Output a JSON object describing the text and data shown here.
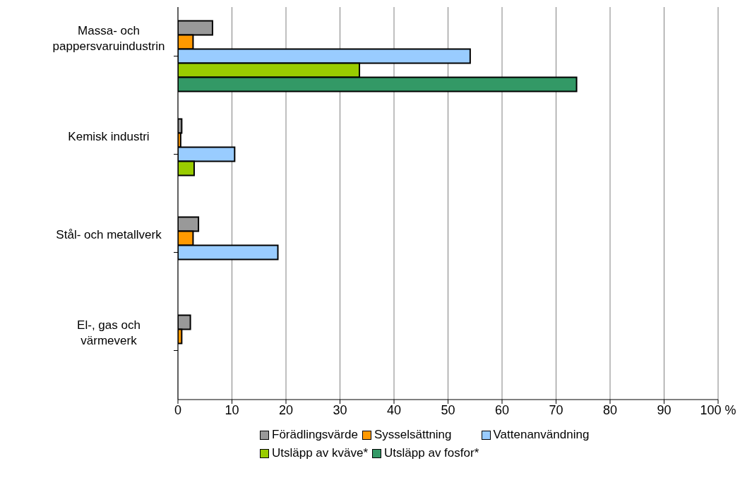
{
  "chart_data": {
    "type": "bar",
    "orientation": "horizontal",
    "categories": [
      "Massa- och pappersvaruindustrin",
      "Kemisk industri",
      "Stål- och metallverk",
      "El-, gas och värmeverk"
    ],
    "series": [
      {
        "name": "Förädlingsvärde",
        "color": "#999999",
        "values": [
          6.4,
          0.7,
          3.8,
          2.3
        ]
      },
      {
        "name": "Sysselsättning",
        "color": "#ff9900",
        "values": [
          2.8,
          0.5,
          2.8,
          0.7
        ]
      },
      {
        "name": "Vattenanvändning",
        "color": "#99ccff",
        "values": [
          54.1,
          10.5,
          18.5,
          null
        ]
      },
      {
        "name": "Utsläpp av kväve*",
        "color": "#99cc00",
        "values": [
          33.6,
          3.0,
          null,
          null
        ]
      },
      {
        "name": "Utsläpp av fosfor*",
        "color": "#339966",
        "values": [
          73.8,
          null,
          null,
          null
        ]
      }
    ],
    "xlim": [
      0,
      100
    ],
    "xticks": [
      0,
      10,
      20,
      30,
      40,
      50,
      60,
      70,
      80,
      90,
      {
        "value": 100,
        "label": "100 %"
      }
    ],
    "grid": "x",
    "legend": "bottom"
  }
}
